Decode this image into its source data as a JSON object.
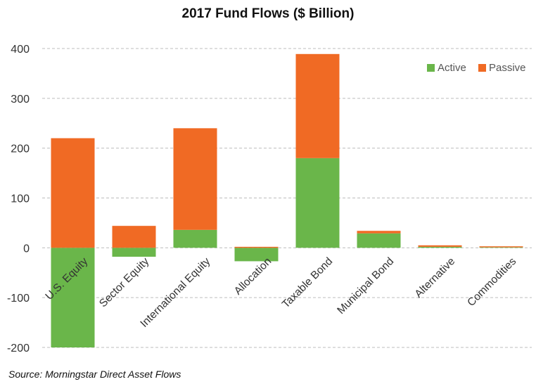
{
  "chart_data": {
    "type": "bar",
    "stacked": true,
    "title": "2017 Fund Flows ($ Billion)",
    "xlabel": "",
    "ylabel": "",
    "ylim": [
      -200,
      400
    ],
    "yticks": [
      400,
      300,
      200,
      100,
      0,
      -100,
      -200
    ],
    "grid": true,
    "legend_position": "top-right",
    "categories": [
      "U.S. Equity",
      "Sector Equity",
      "International Equity",
      "Allocation",
      "Taxable Bond",
      "Municipal Bond",
      "Alternative",
      "Commodities"
    ],
    "series": [
      {
        "name": "Active",
        "color": "#6ab64a",
        "values": [
          -200,
          -18,
          36,
          -27,
          180,
          29,
          2,
          1
        ]
      },
      {
        "name": "Passive",
        "color": "#f06a24",
        "values": [
          220,
          44,
          204,
          2,
          209,
          5,
          3,
          2
        ]
      }
    ],
    "source": "Source: Morningstar Direct Asset Flows"
  }
}
